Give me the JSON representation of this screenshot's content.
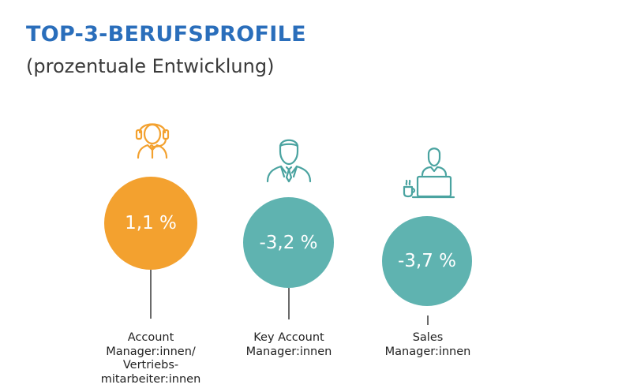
{
  "title": "TOP-3-BERUFSPROFILE",
  "subtitle": "(prozentuale Entwicklung)",
  "colors": {
    "title": "#2a6ebb",
    "positive": "#f3a12f",
    "negative": "#5fb3b0",
    "icon_orange": "#f3a12f",
    "icon_teal": "#4aa3a0"
  },
  "chart_data": {
    "type": "bubble",
    "title": "TOP-3-BERUFSPROFILE",
    "subtitle": "(prozentuale Entwicklung)",
    "unit": "%",
    "categories": [
      "Account\nManager:innen/\nVertriebs-\nmitarbeiter:innen",
      "Key Account\nManager:innen",
      "Sales\nManager:innen"
    ],
    "values": [
      1.1,
      -3.2,
      -3.7
    ],
    "value_labels": [
      "1,1 %",
      "-3,2 %",
      "-3,7 %"
    ],
    "icons": [
      "headset-agent-icon",
      "businessman-tie-icon",
      "laptop-worker-icon"
    ]
  }
}
